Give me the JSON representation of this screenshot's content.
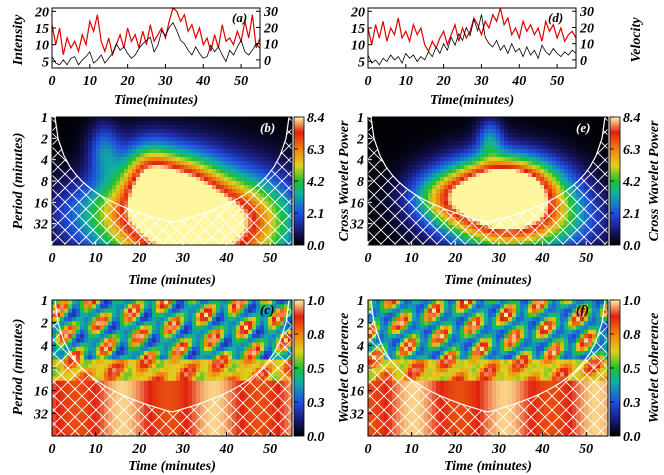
{
  "figure": {
    "panels": {
      "a": {
        "tag": "(a)",
        "ylabel": "Intensity",
        "xlabel": "Time(minutes)"
      },
      "d": {
        "tag": "(d)",
        "ylabel": "Velocity",
        "xlabel": "Time(minutes)"
      },
      "b": {
        "tag": "(b)",
        "ylabel": "Period (minutes)",
        "xlabel": "Time (minutes)",
        "cbar_label": "Cross Wavelet Power"
      },
      "e": {
        "tag": "(e)",
        "xlabel": "Time (minutes)",
        "cbar_label": "Cross Wavelet Power"
      },
      "c": {
        "tag": "(c)",
        "ylabel": "Period (minutes)",
        "xlabel": "Time (minutes)",
        "cbar_label": "Wavelet Coherence"
      },
      "f": {
        "tag": "(f)",
        "xlabel": "Time (minutes)",
        "cbar_label": "Wavelet Coherence"
      }
    }
  },
  "chart_data": [
    {
      "id": "a",
      "type": "line",
      "tag": "(a)",
      "xlabel": "Time(minutes)",
      "ylabel": "Intensity",
      "xlim": [
        0,
        55
      ],
      "ylim": [
        3,
        21
      ],
      "y2lim": [
        -5,
        32
      ],
      "xticks": [
        0,
        10,
        20,
        30,
        40,
        50
      ],
      "yticks": [
        5,
        10,
        15,
        20
      ],
      "y2ticks": [
        0,
        10,
        20,
        30
      ],
      "series": [
        {
          "axis": "left",
          "color": "#dd0000",
          "x": [
            0,
            1,
            2,
            3,
            4,
            5,
            6,
            7,
            8,
            9,
            10,
            11,
            12,
            13,
            14,
            15,
            16,
            17,
            18,
            19,
            20,
            21,
            22,
            23,
            24,
            25,
            26,
            27,
            28,
            29,
            30,
            31,
            32,
            33,
            34,
            35,
            36,
            37,
            38,
            39,
            40,
            41,
            42,
            43,
            44,
            45,
            46,
            47,
            48,
            49,
            50,
            51,
            52,
            53,
            54,
            55
          ],
          "values": [
            16,
            10,
            15,
            7,
            12,
            9,
            11,
            8,
            13,
            10,
            17,
            14,
            19,
            11,
            8,
            12,
            7,
            10,
            13,
            9,
            15,
            11,
            13,
            9,
            14,
            10,
            16,
            11,
            13,
            15,
            12,
            17,
            21,
            20,
            17,
            19,
            14,
            16,
            12,
            15,
            10,
            12,
            8,
            13,
            9,
            16,
            11,
            12,
            10,
            14,
            11,
            17,
            12,
            19,
            9,
            12
          ]
        },
        {
          "axis": "right",
          "color": "#000000",
          "x": [
            0,
            1,
            2,
            3,
            4,
            5,
            6,
            7,
            8,
            9,
            10,
            11,
            12,
            13,
            14,
            15,
            16,
            17,
            18,
            19,
            20,
            21,
            22,
            23,
            24,
            25,
            26,
            27,
            28,
            29,
            30,
            31,
            32,
            33,
            34,
            35,
            36,
            37,
            38,
            39,
            40,
            41,
            42,
            43,
            44,
            45,
            46,
            47,
            48,
            49,
            50,
            51,
            52,
            53,
            54,
            55
          ],
          "values": [
            2,
            -2,
            -3,
            0,
            -3,
            1,
            2,
            -3,
            0,
            2,
            5,
            -2,
            0,
            3,
            -2,
            1,
            4,
            10,
            6,
            8,
            4,
            1,
            3,
            7,
            10,
            12,
            14,
            5,
            9,
            18,
            15,
            20,
            23,
            18,
            12,
            10,
            6,
            3,
            8,
            4,
            1,
            2,
            9,
            5,
            8,
            3,
            -1,
            6,
            3,
            8,
            12,
            5,
            3,
            6,
            10,
            7
          ]
        }
      ]
    },
    {
      "id": "d",
      "type": "line",
      "tag": "(d)",
      "xlabel": "Time(minutes)",
      "ylabel": "Velocity",
      "xlim": [
        0,
        55
      ],
      "ylim": [
        3,
        21
      ],
      "y2lim": [
        -5,
        32
      ],
      "xticks": [
        0,
        10,
        20,
        30,
        40,
        50
      ],
      "yticks": [
        5,
        10,
        15,
        20
      ],
      "y2ticks": [
        0,
        10,
        20,
        30
      ],
      "series": [
        {
          "axis": "left",
          "color": "#dd0000",
          "x": [
            0,
            1,
            2,
            3,
            4,
            5,
            6,
            7,
            8,
            9,
            10,
            11,
            12,
            13,
            14,
            15,
            16,
            17,
            18,
            19,
            20,
            21,
            22,
            23,
            24,
            25,
            26,
            27,
            28,
            29,
            30,
            31,
            32,
            33,
            34,
            35,
            36,
            37,
            38,
            39,
            40,
            41,
            42,
            43,
            44,
            45,
            46,
            47,
            48,
            49,
            50,
            51,
            52,
            53,
            54,
            55
          ],
          "values": [
            15,
            10,
            16,
            12,
            17,
            11,
            15,
            13,
            18,
            12,
            14,
            11,
            16,
            13,
            15,
            10,
            8,
            11,
            9,
            12,
            14,
            10,
            13,
            16,
            11,
            15,
            12,
            14,
            18,
            16,
            13,
            17,
            15,
            19,
            17,
            21,
            16,
            18,
            13,
            15,
            12,
            17,
            14,
            16,
            13,
            15,
            11,
            17,
            14,
            16,
            12,
            15,
            11,
            13,
            14,
            12
          ]
        },
        {
          "axis": "right",
          "color": "#000000",
          "x": [
            0,
            1,
            2,
            3,
            4,
            5,
            6,
            7,
            8,
            9,
            10,
            11,
            12,
            13,
            14,
            15,
            16,
            17,
            18,
            19,
            20,
            21,
            22,
            23,
            24,
            25,
            26,
            27,
            28,
            29,
            30,
            31,
            32,
            33,
            34,
            35,
            36,
            37,
            38,
            39,
            40,
            41,
            42,
            43,
            44,
            45,
            46,
            47,
            48,
            49,
            50,
            51,
            52,
            53,
            54,
            55
          ],
          "values": [
            3,
            -2,
            0,
            -3,
            1,
            -1,
            3,
            0,
            2,
            -2,
            4,
            1,
            3,
            -1,
            2,
            0,
            5,
            2,
            8,
            4,
            10,
            6,
            14,
            9,
            16,
            12,
            20,
            15,
            25,
            18,
            28,
            14,
            10,
            8,
            12,
            6,
            9,
            4,
            10,
            5,
            7,
            2,
            8,
            3,
            6,
            1,
            9,
            5,
            3,
            7,
            4,
            2,
            5,
            3,
            6,
            4
          ]
        }
      ]
    },
    {
      "id": "b",
      "type": "heatmap",
      "tag": "(b)",
      "xlabel": "Time (minutes)",
      "ylabel": "Period (minutes)",
      "colorbar_label": "Cross Wavelet Power",
      "xlim": [
        0,
        55
      ],
      "ylim": [
        1,
        64
      ],
      "y_scale": "log2",
      "y_reversed": true,
      "xticks": [
        0,
        10,
        20,
        30,
        40,
        50
      ],
      "yticks": [
        1,
        2,
        4,
        8,
        16,
        32
      ],
      "colorbar_range": [
        0.0,
        8.4
      ],
      "colorbar_ticks": [
        "8.4",
        "6.3",
        "4.2",
        "2.1",
        "0.0"
      ],
      "colormap": "rainbow",
      "blobs": [
        {
          "t": 33,
          "p": 42,
          "st": 13,
          "sp": 0.6,
          "a": 9
        },
        {
          "t": 28,
          "p": 11,
          "st": 7,
          "sp": 0.42,
          "a": 6.2
        },
        {
          "t": 22,
          "p": 6,
          "st": 4,
          "sp": 0.35,
          "a": 3.2
        },
        {
          "t": 12,
          "p": 3,
          "st": 2.5,
          "sp": 0.3,
          "a": 2.4
        },
        {
          "t": 15,
          "p": 22,
          "st": 10,
          "sp": 0.35,
          "a": 2.6
        },
        {
          "t": 45,
          "p": 22,
          "st": 8,
          "sp": 0.4,
          "a": 2.2
        }
      ]
    },
    {
      "id": "e",
      "type": "heatmap",
      "tag": "(e)",
      "xlabel": "Time (minutes)",
      "colorbar_label": "Cross Wavelet Power",
      "xlim": [
        0,
        55
      ],
      "ylim": [
        1,
        64
      ],
      "y_scale": "log2",
      "y_reversed": true,
      "xticks": [
        0,
        10,
        20,
        30,
        40,
        50
      ],
      "yticks": [
        1,
        2,
        4,
        8,
        16,
        32
      ],
      "colorbar_range": [
        0.0,
        8.4
      ],
      "colorbar_ticks": [
        "8.4",
        "6.3",
        "4.2",
        "2.1",
        "0.0"
      ],
      "colormap": "rainbow",
      "blobs": [
        {
          "t": 30,
          "p": 18,
          "st": 8,
          "sp": 0.45,
          "a": 9
        },
        {
          "t": 33,
          "p": 9,
          "st": 8,
          "sp": 0.3,
          "a": 5.4
        },
        {
          "t": 18,
          "p": 14,
          "st": 6,
          "sp": 0.3,
          "a": 4
        },
        {
          "t": 28,
          "p": 2,
          "st": 2,
          "sp": 0.22,
          "a": 2.4
        },
        {
          "t": 42,
          "p": 28,
          "st": 8,
          "sp": 0.35,
          "a": 3.4
        }
      ]
    },
    {
      "id": "c",
      "type": "heatmap",
      "tag": "(c)",
      "xlabel": "Time (minutes)",
      "ylabel": "Period (minutes)",
      "colorbar_label": "Wavelet Coherence",
      "xlim": [
        0,
        55
      ],
      "ylim": [
        1,
        64
      ],
      "y_scale": "log2",
      "y_reversed": true,
      "xticks": [
        0,
        10,
        20,
        30,
        40,
        50
      ],
      "yticks": [
        1,
        2,
        4,
        8,
        16,
        32
      ],
      "colorbar_range": [
        0.0,
        1.0
      ],
      "colorbar_ticks": [
        "1.0",
        "0.8",
        "0.5",
        "0.3",
        "0.0"
      ],
      "colormap": "rainbow",
      "seed": 3
    },
    {
      "id": "f",
      "type": "heatmap",
      "tag": "(f)",
      "xlabel": "Time (minutes)",
      "colorbar_label": "Wavelet Coherence",
      "xlim": [
        0,
        55
      ],
      "ylim": [
        1,
        64
      ],
      "y_scale": "log2",
      "y_reversed": true,
      "xticks": [
        0,
        10,
        20,
        30,
        40,
        50
      ],
      "yticks": [
        1,
        2,
        4,
        8,
        16,
        32
      ],
      "colorbar_range": [
        0.0,
        1.0
      ],
      "colorbar_ticks": [
        "1.0",
        "0.8",
        "0.5",
        "0.3",
        "0.0"
      ],
      "colormap": "rainbow",
      "seed": 11
    }
  ]
}
